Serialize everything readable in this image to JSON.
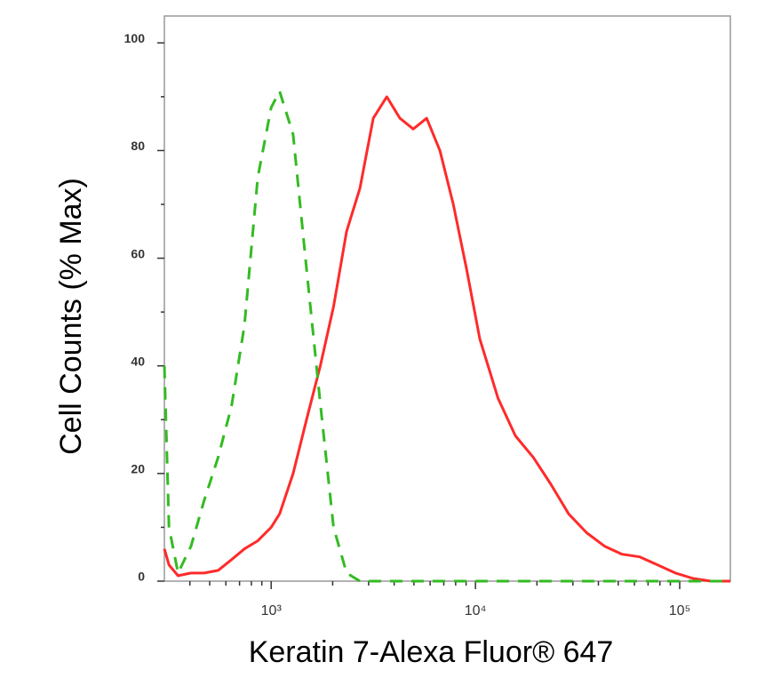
{
  "chart_data": {
    "type": "line",
    "x_label": "Keratin 7-Alexa Fluor® 647",
    "y_label": "Cell Counts (% Max)",
    "x": [
      300,
      316,
      350,
      405,
      470,
      550,
      640,
      740,
      860,
      1000,
      1100,
      1280,
      1490,
      1740,
      2020,
      2340,
      2720,
      3160,
      3680,
      4270,
      4960,
      5770,
      6700,
      7790,
      9050,
      10500,
      12900,
      15700,
      19200,
      23400,
      28600,
      35000,
      42800,
      52200,
      63800,
      78000,
      95300,
      116500,
      142300,
      177000
    ],
    "series": [
      {
        "color": "#ff2a2a",
        "dashed": false,
        "values": [
          6,
          3,
          1,
          1.5,
          1.5,
          2,
          4,
          6,
          7.5,
          10,
          12.5,
          20,
          30,
          40,
          51,
          65,
          73,
          86,
          90,
          86,
          84,
          86,
          80,
          70,
          58,
          45,
          34,
          27,
          23,
          18,
          12.5,
          9,
          6.5,
          5,
          4.5,
          3,
          1.5,
          0.5,
          0,
          0
        ]
      },
      {
        "color": "#33bb22",
        "dashed": true,
        "values": [
          40,
          10,
          1.5,
          6.5,
          15,
          23,
          32.5,
          47.5,
          75,
          88,
          91,
          83,
          58,
          33,
          10,
          1.5,
          0,
          0,
          0,
          0,
          0,
          0,
          0,
          0,
          0,
          0,
          0,
          0,
          0,
          0,
          0,
          0,
          0,
          0,
          0,
          0,
          0,
          0,
          0,
          0
        ]
      }
    ],
    "xscale": "log",
    "xlim": [
      300,
      177000
    ],
    "xticks": [
      {
        "value": 1000,
        "label": "10³"
      },
      {
        "value": 10000,
        "label": "10⁴"
      },
      {
        "value": 100000,
        "label": "10⁵"
      }
    ],
    "xminorticks": [
      400,
      500,
      600,
      700,
      800,
      900,
      2000,
      3000,
      4000,
      5000,
      6000,
      7000,
      8000,
      9000,
      20000,
      30000,
      40000,
      50000,
      60000,
      70000,
      80000,
      90000
    ],
    "ylim": [
      0,
      105
    ],
    "yticks": [
      0,
      20,
      40,
      60,
      80,
      100
    ],
    "yminorticks": [
      10,
      30,
      50,
      70,
      90
    ],
    "grid": false
  }
}
